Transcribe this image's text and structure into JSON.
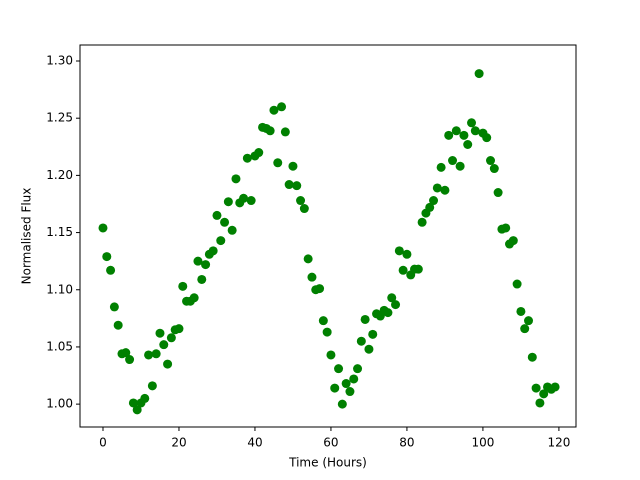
{
  "chart_data": {
    "type": "scatter",
    "xlabel": "Time (Hours)",
    "ylabel": "Normalised Flux",
    "x": [
      0,
      1,
      2,
      3,
      4,
      5,
      6,
      7,
      8,
      9,
      10,
      11,
      12,
      13,
      14,
      15,
      16,
      17,
      18,
      19,
      20,
      21,
      22,
      23,
      24,
      25,
      26,
      27,
      28,
      29,
      30,
      31,
      32,
      33,
      34,
      35,
      36,
      37,
      38,
      39,
      40,
      41,
      42,
      43,
      44,
      45,
      46,
      47,
      48,
      49,
      50,
      51,
      52,
      53,
      54,
      55,
      56,
      57,
      58,
      59,
      60,
      61,
      62,
      63,
      64,
      65,
      66,
      67,
      68,
      69,
      70,
      71,
      72,
      73,
      74,
      75,
      76,
      77,
      78,
      79,
      80,
      81,
      82,
      83,
      84,
      85,
      86,
      87,
      88,
      89,
      90,
      91,
      92,
      93,
      94,
      95,
      96,
      97,
      98,
      99,
      100,
      101,
      102,
      103,
      104,
      105,
      106,
      107,
      108,
      109,
      110,
      111,
      112,
      113,
      114,
      115,
      116,
      117,
      118,
      119
    ],
    "series": [
      {
        "color": "#008000",
        "values": [
          1.154,
          1.129,
          1.117,
          1.085,
          1.069,
          1.044,
          1.045,
          1.039,
          1.001,
          0.995,
          1.001,
          1.005,
          1.043,
          1.016,
          1.044,
          1.062,
          1.052,
          1.035,
          1.058,
          1.065,
          1.066,
          1.103,
          1.09,
          1.09,
          1.093,
          1.125,
          1.109,
          1.122,
          1.131,
          1.134,
          1.165,
          1.143,
          1.159,
          1.177,
          1.152,
          1.197,
          1.176,
          1.18,
          1.215,
          1.178,
          1.217,
          1.22,
          1.242,
          1.241,
          1.239,
          1.257,
          1.211,
          1.26,
          1.238,
          1.192,
          1.208,
          1.191,
          1.178,
          1.171,
          1.127,
          1.111,
          1.1,
          1.101,
          1.073,
          1.063,
          1.043,
          1.014,
          1.031,
          1.0,
          1.018,
          1.011,
          1.022,
          1.031,
          1.055,
          1.074,
          1.048,
          1.061,
          1.079,
          1.077,
          1.082,
          1.08,
          1.093,
          1.087,
          1.134,
          1.117,
          1.131,
          1.113,
          1.118,
          1.118,
          1.159,
          1.167,
          1.172,
          1.178,
          1.189,
          1.207,
          1.187,
          1.235,
          1.213,
          1.239,
          1.208,
          1.235,
          1.227,
          1.246,
          1.239,
          1.289,
          1.237,
          1.233,
          1.213,
          1.206,
          1.185,
          1.153,
          1.154,
          1.14,
          1.143,
          1.105,
          1.081,
          1.066,
          1.073,
          1.041,
          1.014,
          1.001,
          1.009,
          1.015,
          1.013,
          1.015
        ]
      }
    ],
    "xlim": [
      -6.05,
      124.5
    ],
    "ylim": [
      0.98,
      1.314
    ],
    "xticks": [
      0,
      20,
      40,
      60,
      80,
      100,
      120
    ],
    "yticks": [
      {
        "value": 1,
        "label": "1.00"
      },
      1.05,
      {
        "value": 1.1,
        "label": "1.10"
      },
      1.15,
      {
        "value": 1.2,
        "label": "1.20"
      },
      1.25,
      {
        "value": 1.3,
        "label": "1.30"
      }
    ],
    "grid": false
  }
}
